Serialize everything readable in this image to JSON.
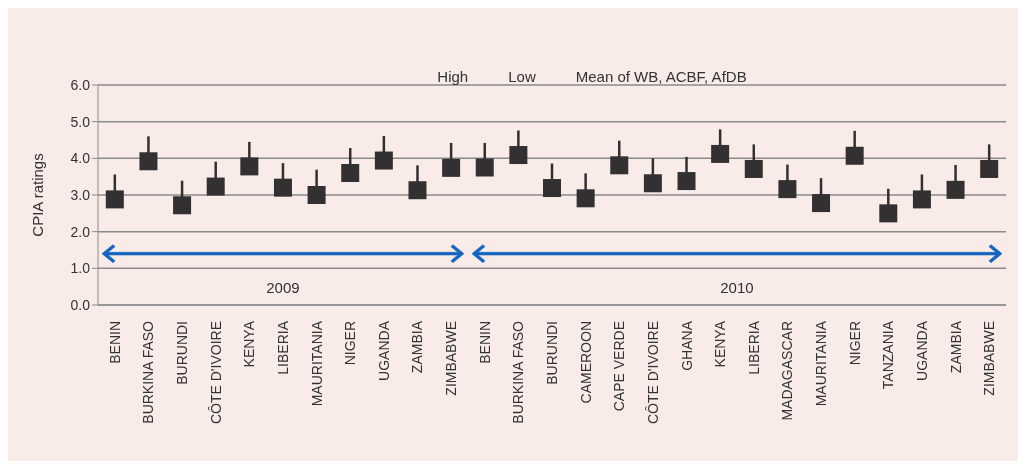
{
  "chart_data": {
    "type": "scatter",
    "ylabel": "CPIA ratings",
    "categories": [
      "BENIN",
      "BURKINA FASO",
      "BURUNDI",
      "CÔTE D'IVOIRE",
      "KENYA",
      "LIBERIA",
      "MAURITANIA",
      "NIGER",
      "UGANDA",
      "ZAMBIA",
      "ZIMBABWE",
      "BENIN",
      "BURKINA FASO",
      "BURUNDI",
      "CAMEROON",
      "CAPE VERDE",
      "CÔTE D'IVOIRE",
      "GHANA",
      "KENYA",
      "LIBERIA",
      "MADAGASCAR",
      "MAURITANIA",
      "NIGER",
      "TANZANIA",
      "UGANDA",
      "ZAMBIA",
      "ZIMBABWE"
    ],
    "series": [
      {
        "name": "Mean of WB, ACBF, AfDB",
        "color": "#333031",
        "marker": "square",
        "values": [
          2.88,
          3.92,
          2.72,
          3.23,
          3.78,
          3.2,
          3.0,
          3.6,
          3.94,
          3.13,
          3.74,
          3.75,
          4.09,
          3.19,
          2.91,
          3.81,
          3.32,
          3.38,
          4.12,
          3.71,
          3.16,
          2.78,
          4.07,
          2.5,
          2.88,
          3.14,
          3.71
        ],
        "errors": [
          [
            2.88,
            3.56
          ],
          [
            3.92,
            4.6
          ],
          [
            2.72,
            3.39
          ],
          [
            3.23,
            3.91
          ],
          [
            3.78,
            4.45
          ],
          [
            3.2,
            3.87
          ],
          [
            3.0,
            3.69
          ],
          [
            3.6,
            4.28
          ],
          [
            3.94,
            4.61
          ],
          [
            3.13,
            3.81
          ],
          [
            3.74,
            4.42
          ],
          [
            3.75,
            4.42
          ],
          [
            4.09,
            4.76
          ],
          [
            3.19,
            3.86
          ],
          [
            2.91,
            3.59
          ],
          [
            3.81,
            4.48
          ],
          [
            3.32,
            4.0
          ],
          [
            3.38,
            4.04
          ],
          [
            4.12,
            4.79
          ],
          [
            3.71,
            4.38
          ],
          [
            3.16,
            3.83
          ],
          [
            2.78,
            3.46
          ],
          [
            4.07,
            4.75
          ],
          [
            2.5,
            3.17
          ],
          [
            2.88,
            3.56
          ],
          [
            3.14,
            3.82
          ],
          [
            3.71,
            4.38
          ]
        ]
      }
    ],
    "ylim": [
      0,
      6
    ],
    "yticks": [
      {
        "value": 0,
        "label": "0.0"
      },
      {
        "value": 1,
        "label": "1.0"
      },
      {
        "value": 2,
        "label": "2.0"
      },
      {
        "value": 3,
        "label": "3.0"
      },
      {
        "value": 4,
        "label": "4.0"
      },
      {
        "value": 5,
        "label": "5.0"
      },
      {
        "value": 6,
        "label": "6.0"
      }
    ],
    "grid": "y",
    "legend": "top",
    "annotations": [
      "High",
      "Low",
      "2009",
      "2010"
    ]
  }
}
